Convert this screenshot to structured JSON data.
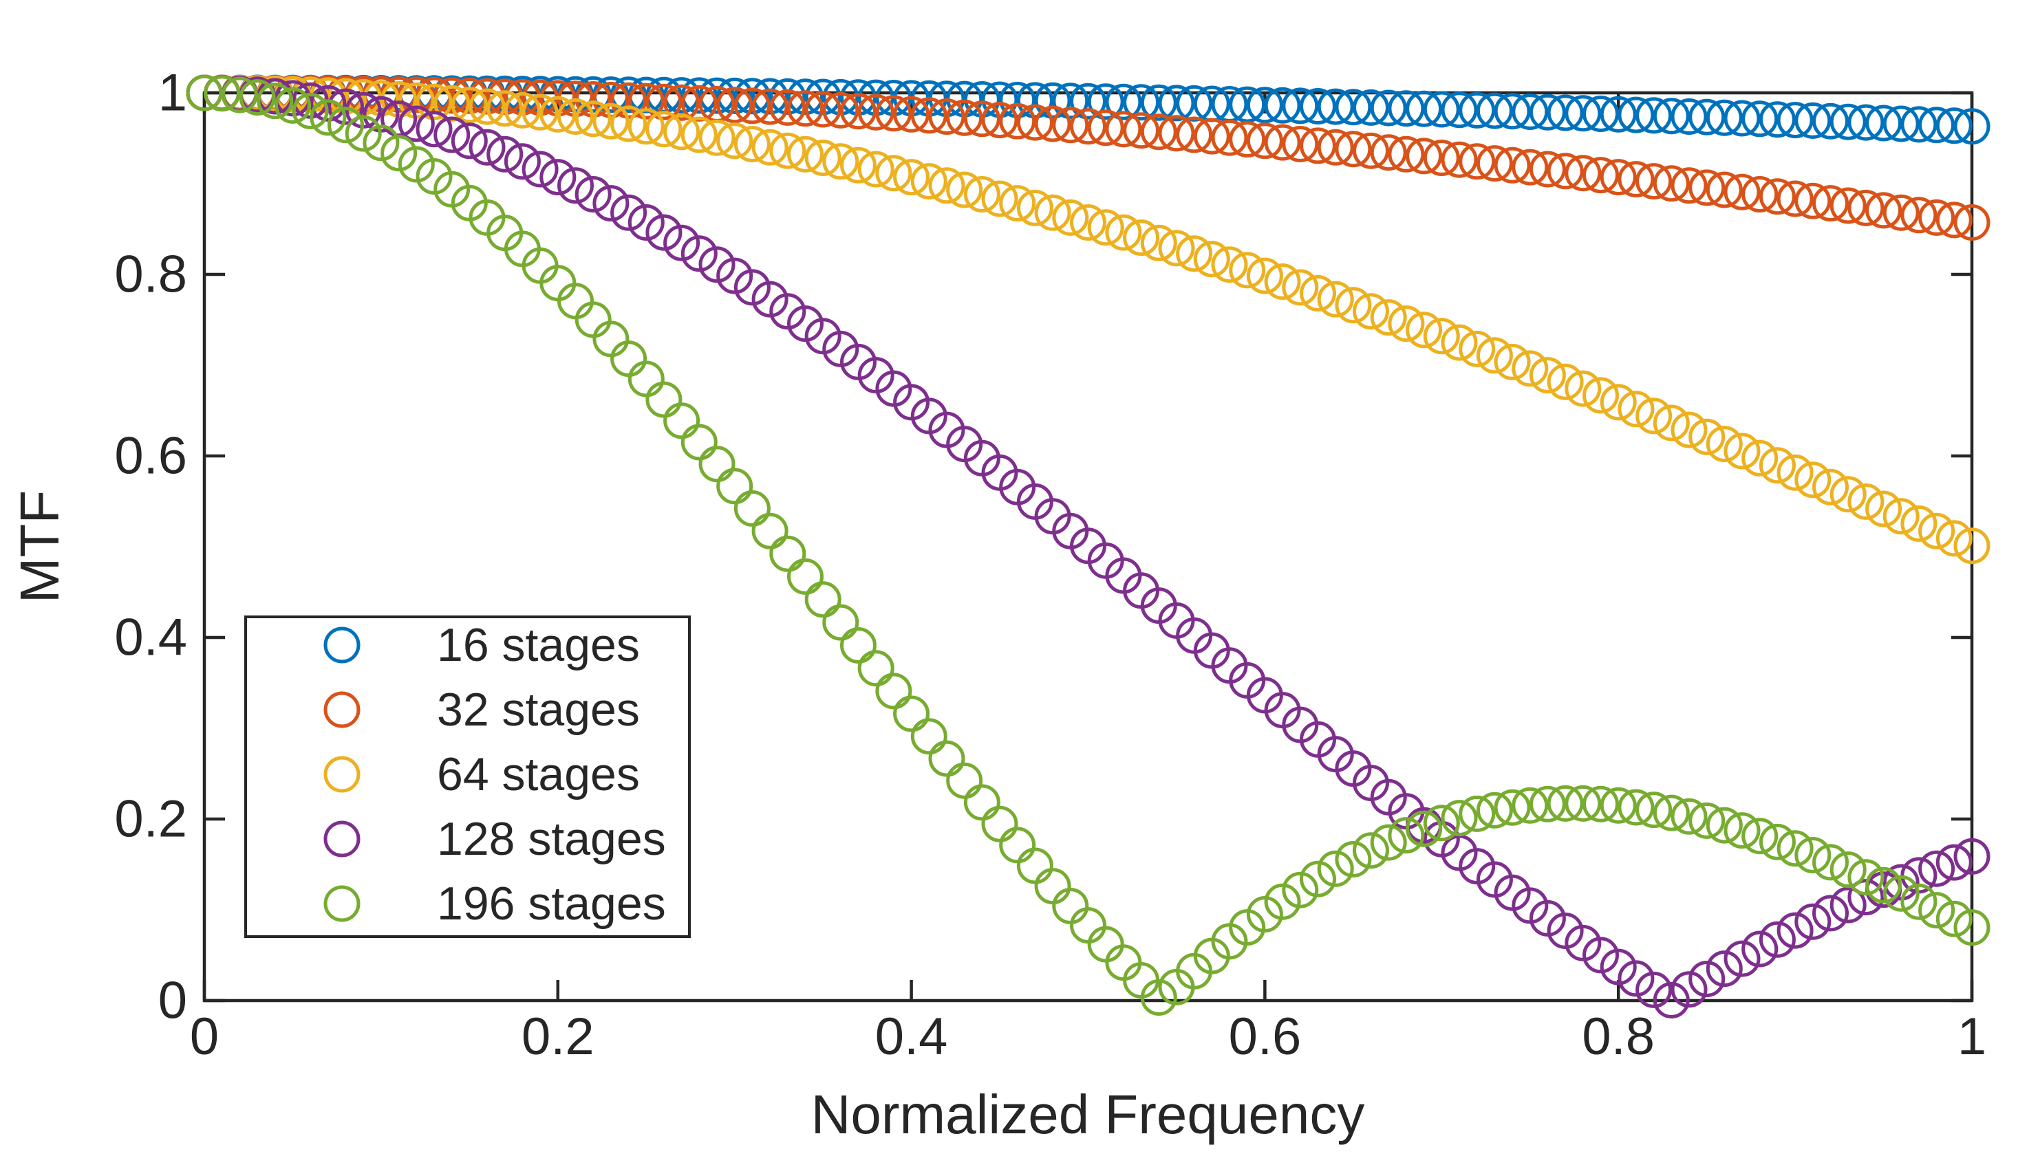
{
  "figure": {
    "background": "#ffffff",
    "axis_color": "#262626",
    "description": "MATLAB-style figure of TDI MTF versus normalized frequency for different numbers of stages"
  },
  "chart_data": {
    "type": "scatter",
    "title": "",
    "xlabel": "Normalized Frequency",
    "ylabel": "MTF",
    "xlim": [
      0,
      1
    ],
    "ylim": [
      0,
      1
    ],
    "x_ticks": [
      0,
      0.2,
      0.4,
      0.6,
      0.8,
      1
    ],
    "x_tick_labels": [
      "0",
      "0.2",
      "0.4",
      "0.6",
      "0.8",
      "1"
    ],
    "y_ticks": [
      0,
      0.2,
      0.4,
      0.6,
      0.8,
      1
    ],
    "y_tick_labels": [
      "0",
      "0.2",
      "0.4",
      "0.6",
      "0.8",
      "1"
    ],
    "grid": false,
    "box": true,
    "marker": "hollow-circle",
    "marker_radius_px": 24,
    "marker_stroke_px": 5,
    "sampling": {
      "x_start": 0,
      "x_step": 0.01,
      "n_points": 101
    },
    "model": {
      "formula": "MTF(f,N) = |sinc(N*f/106.2)|  with  sinc(x) = sin(pi*x)/(pi*x)",
      "sinc_scale": 106.2
    },
    "series": [
      {
        "name": "16 stages",
        "stages": 16,
        "color": "#0072BD",
        "values_at": {
          "f0": 1.0,
          "f02": 0.9985,
          "f04": 0.994,
          "f06": 0.9866,
          "f08": 0.9763,
          "f1": 0.9631
        }
      },
      {
        "name": "32 stages",
        "stages": 32,
        "color": "#D95319",
        "values_at": {
          "f0": 1.0,
          "f02": 0.994,
          "f04": 0.9763,
          "f06": 0.9471,
          "f08": 0.9071,
          "f1": 0.8572
        }
      },
      {
        "name": "64 stages",
        "stages": 64,
        "color": "#EDB120",
        "values_at": {
          "f0": 1.0,
          "f02": 0.9763,
          "f04": 0.907,
          "f06": 0.7984,
          "f08": 0.6592,
          "f1": 0.501
        }
      },
      {
        "name": "128 stages",
        "stages": 128,
        "color": "#7E2F8E",
        "zero_at_x": 0.83,
        "values_at": {
          "f0": 1.0,
          "f02": 0.907,
          "f04": 0.6592,
          "f06": 0.3364,
          "f08": 0.037,
          "f1": 0.159
        }
      },
      {
        "name": "196 stages",
        "stages": 196,
        "color": "#77AC30",
        "zero_at_x": 0.542,
        "second_lobe_peak": {
          "x": 0.775,
          "y": 0.217
        },
        "values_at": {
          "f0": 1.0,
          "f02": 0.7905,
          "f04": 0.316,
          "f06": 0.0951,
          "f08": 0.215,
          "f1": 0.0804
        }
      }
    ],
    "legend": {
      "position": "inside-lower-left",
      "border": true,
      "background": "#ffffff"
    }
  }
}
